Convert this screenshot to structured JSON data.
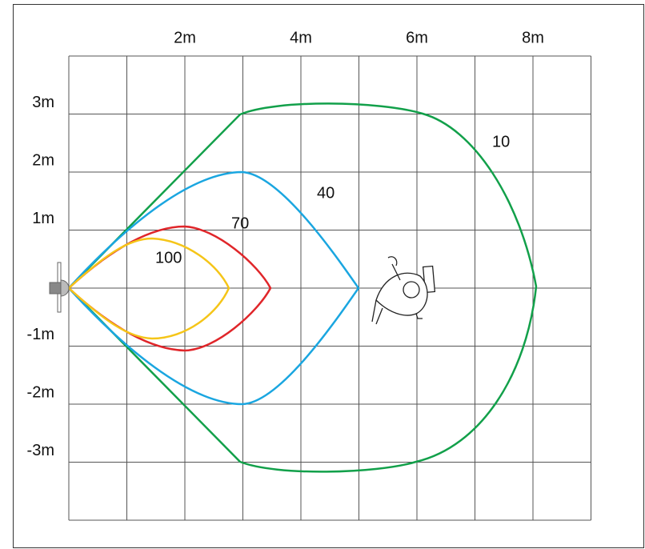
{
  "x_axis_labels": [
    "2m",
    "4m",
    "6m",
    "8m"
  ],
  "y_axis_labels": [
    "3m",
    "2m",
    "1m",
    "-1m",
    "-2m",
    "-3m"
  ],
  "curve_labels": [
    "10",
    "40",
    "70",
    "100"
  ]
}
